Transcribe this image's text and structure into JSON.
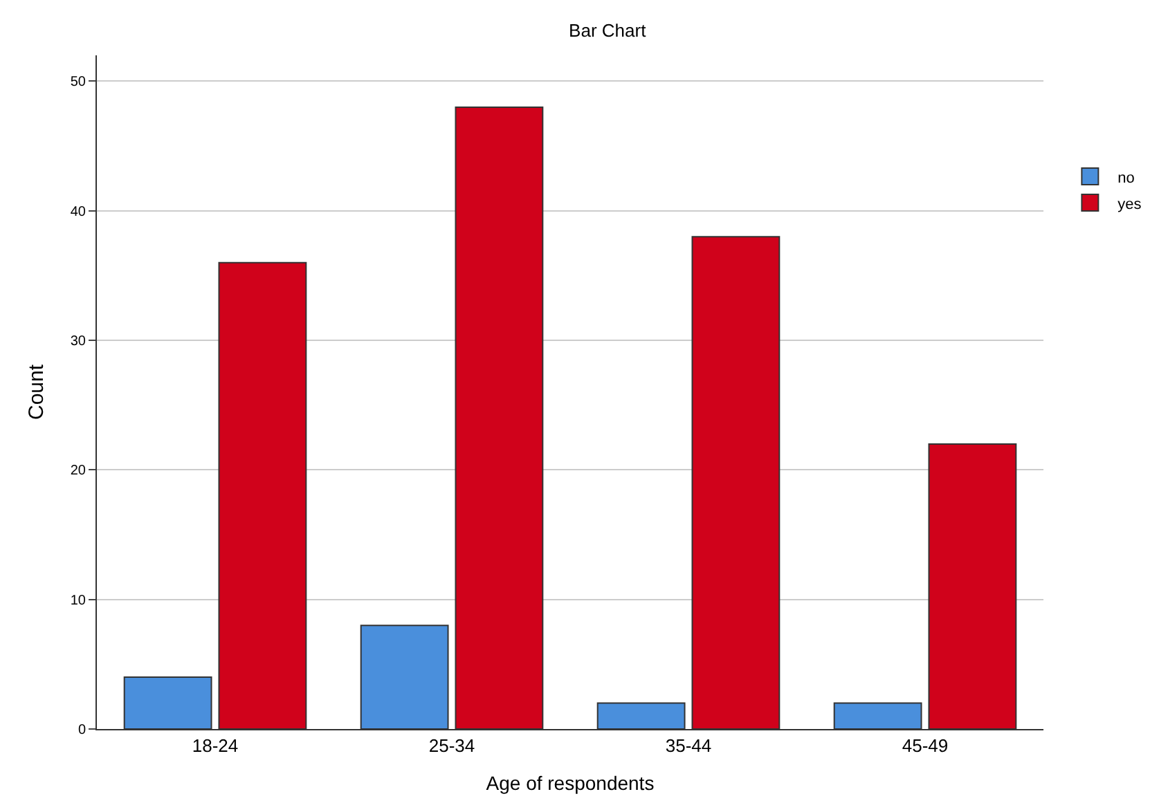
{
  "chart_data": {
    "type": "bar",
    "title": "Bar Chart",
    "xlabel": "Age of respondents",
    "ylabel": "Count",
    "categories": [
      "18-24",
      "25-34",
      "35-44",
      "45-49"
    ],
    "series": [
      {
        "name": "no",
        "color": "#4a8fdc",
        "values": [
          4,
          8,
          2,
          2
        ]
      },
      {
        "name": "yes",
        "color": "#d0021b",
        "values": [
          36,
          48,
          38,
          22
        ]
      }
    ],
    "ylim": [
      0,
      52
    ],
    "yticks": [
      0,
      10,
      20,
      30,
      40,
      50
    ],
    "grid": "y",
    "legend": "top right"
  }
}
